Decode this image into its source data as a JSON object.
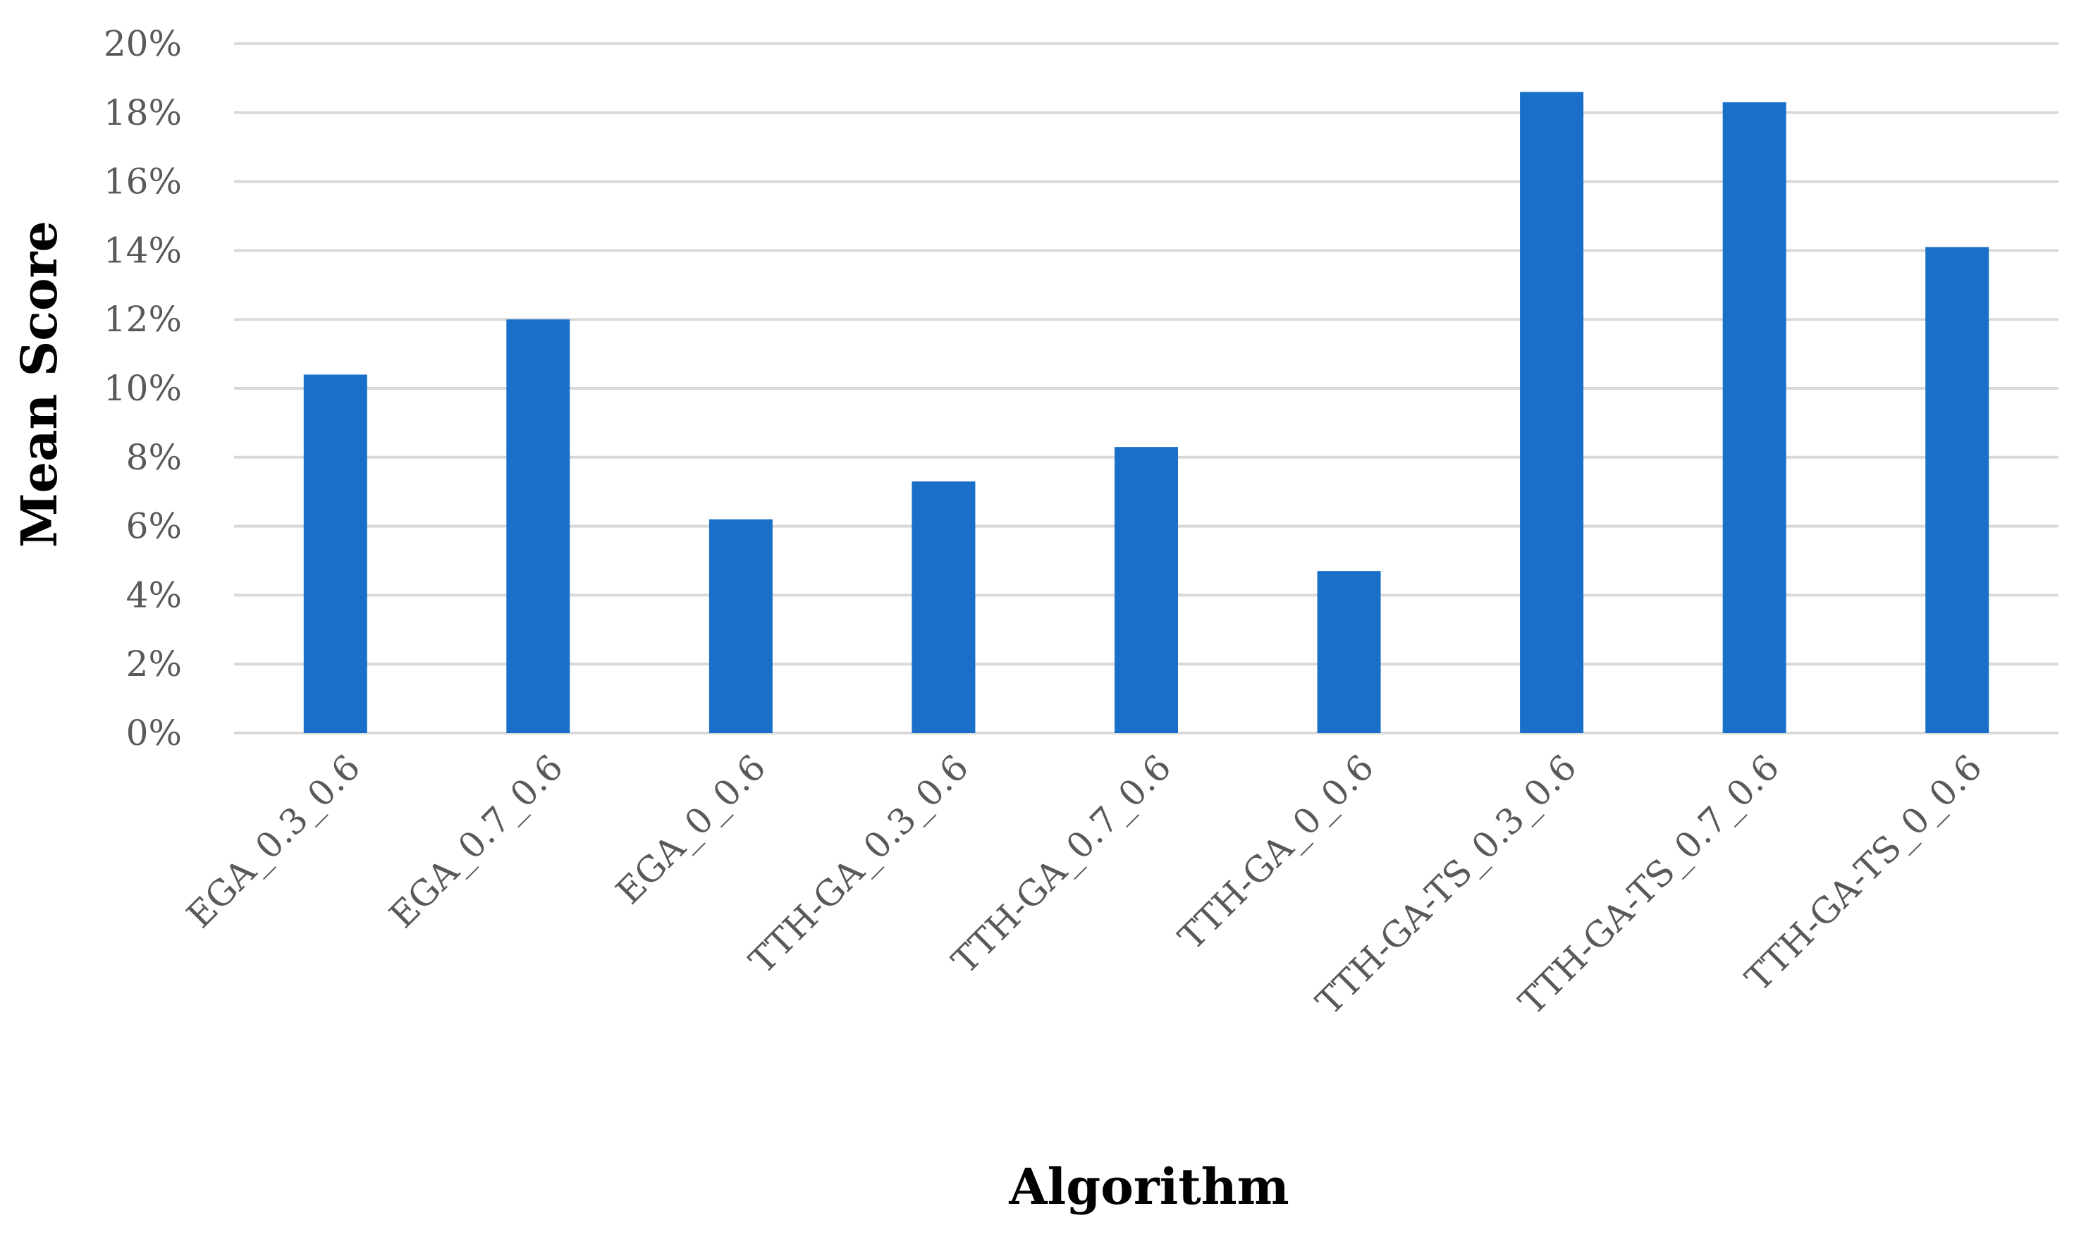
{
  "chart_data": {
    "type": "bar",
    "title": "",
    "xlabel": "Algorithm",
    "ylabel": "Mean Score",
    "categories": [
      "EGA_0.3_0.6",
      "EGA_0.7_0.6",
      "EGA_0_0.6",
      "TTH-GA_0.3_0.6",
      "TTH-GA_0.7_0.6",
      "TTH-GA_0_0.6",
      "TTH-GA-TS_0.3_0.6",
      "TTH-GA-TS_0.7_0.6",
      "TTH-GA-TS_0_0.6"
    ],
    "values": [
      10.4,
      12.0,
      6.2,
      7.3,
      8.3,
      4.7,
      18.6,
      18.3,
      14.1
    ],
    "value_format": "percent",
    "ylim": [
      0,
      20
    ],
    "yticks": [
      "0%",
      "2%",
      "4%",
      "6%",
      "8%",
      "10%",
      "12%",
      "14%",
      "16%",
      "18%",
      "20%"
    ],
    "grid": true,
    "legend": "none",
    "colors": {
      "bar": "#1a70c8",
      "grid": "#d9d9d9",
      "tick_text": "#595959",
      "axis_title": "#000000"
    }
  }
}
